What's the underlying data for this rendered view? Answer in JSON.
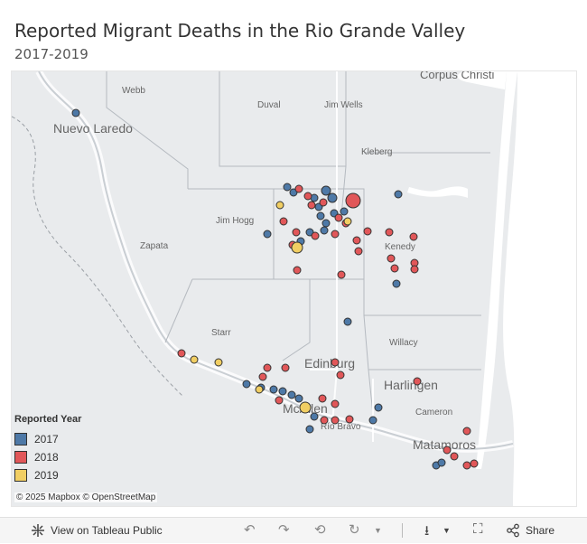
{
  "title": "Reported Migrant Deaths in the Rio Grande Valley",
  "subtitle": "2017-2019",
  "map": {
    "place_labels": [
      {
        "name": "Corpus Christi",
        "size": "large"
      },
      {
        "name": "Webb",
        "size": "small"
      },
      {
        "name": "Nuevo Laredo",
        "size": "large"
      },
      {
        "name": "Duval",
        "size": "small"
      },
      {
        "name": "Jim Wells",
        "size": "small"
      },
      {
        "name": "Kleberg",
        "size": "small"
      },
      {
        "name": "Jim Hogg",
        "size": "small"
      },
      {
        "name": "Zapata",
        "size": "small"
      },
      {
        "name": "Kenedy",
        "size": "small"
      },
      {
        "name": "Starr",
        "size": "small"
      },
      {
        "name": "Willacy",
        "size": "small"
      },
      {
        "name": "Edinburg",
        "size": "large"
      },
      {
        "name": "Harlingen",
        "size": "large"
      },
      {
        "name": "McAllen",
        "size": "large"
      },
      {
        "name": "Cameron",
        "size": "small"
      },
      {
        "name": "Río Bravo",
        "size": "small"
      },
      {
        "name": "Matamoros",
        "size": "large"
      }
    ],
    "colors": {
      "y2017": "#4e79a7",
      "y2018": "#e15759",
      "y2019": "#f1ce63",
      "land": "#e9ebed",
      "water": "#ffffff"
    }
  },
  "legend": {
    "title": "Reported Year",
    "items": [
      {
        "label": "2017",
        "color": "#4e79a7"
      },
      {
        "label": "2018",
        "color": "#e15759"
      },
      {
        "label": "2019",
        "color": "#f1ce63"
      }
    ]
  },
  "attribution": "© 2025 Mapbox © OpenStreetMap",
  "toolbar": {
    "view_label": "View on Tableau Public",
    "share_label": "Share"
  }
}
